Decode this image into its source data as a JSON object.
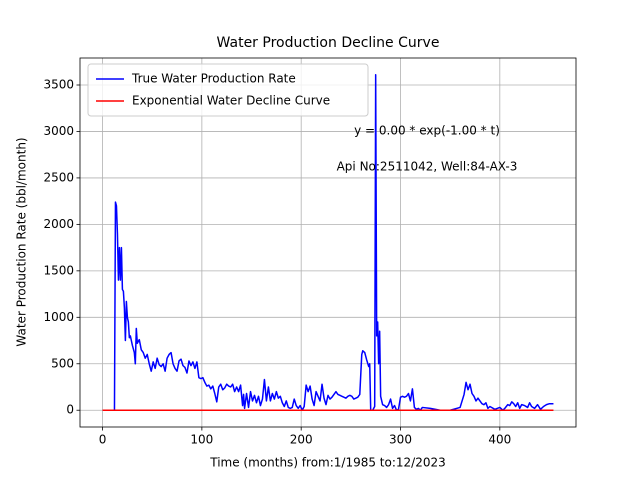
{
  "chart_data": {
    "type": "line",
    "title": "Water Production Decline Curve",
    "x_label": "Time (months) from:1/1985 to:12/2023",
    "y_label": "Water Production Rate (bbl/month)",
    "annotations": [
      "y = 0.00 * exp(-1.00 * t)",
      "Api No:2511042, Well:84-AX-3"
    ],
    "xlim": [
      -22.7,
      476.7
    ],
    "xticks": [
      0,
      100,
      200,
      300,
      400
    ],
    "ylim": [
      -180.5,
      3790.5
    ],
    "yticks": [
      0,
      500,
      1000,
      1500,
      2000,
      2500,
      3000,
      3500
    ],
    "grid": true,
    "legend": "upper left",
    "series": [
      {
        "name": "True Water Production Rate",
        "color": "#0000ff",
        "x": [
          0,
          12,
          13,
          14,
          15,
          16,
          17,
          18,
          19,
          20,
          21,
          22,
          23,
          24,
          25,
          26,
          27,
          28,
          30,
          32,
          33,
          34,
          35,
          37,
          39,
          41,
          43,
          45,
          47,
          49,
          51,
          53,
          55,
          57,
          59,
          61,
          63,
          65,
          67,
          69,
          71,
          73,
          75,
          77,
          79,
          81,
          83,
          85,
          87,
          89,
          91,
          93,
          95,
          97,
          99,
          101,
          103,
          105,
          107,
          109,
          111,
          113,
          115,
          117,
          119,
          121,
          123,
          125,
          127,
          129,
          131,
          133,
          135,
          137,
          139,
          141,
          142,
          143,
          145,
          147,
          149,
          151,
          153,
          155,
          157,
          159,
          161,
          163,
          165,
          167,
          169,
          171,
          173,
          175,
          177,
          179,
          181,
          183,
          185,
          187,
          189,
          191,
          193,
          195,
          197,
          199,
          201,
          203,
          205,
          207,
          209,
          211,
          213,
          215,
          217,
          219,
          221,
          223,
          225,
          227,
          229,
          231,
          233,
          235,
          237,
          239,
          241,
          243,
          245,
          247,
          249,
          251,
          253,
          255,
          257,
          259,
          261,
          262,
          264,
          266,
          268,
          269,
          270,
          272,
          274,
          275,
          276,
          277,
          278,
          279,
          280,
          282,
          284,
          286,
          288,
          290,
          292,
          294,
          296,
          298,
          300,
          302,
          304,
          306,
          308,
          310,
          312,
          314,
          316,
          318,
          320,
          322,
          330,
          340,
          350,
          360,
          362,
          364,
          366,
          368,
          370,
          372,
          374,
          376,
          378,
          380,
          382,
          384,
          386,
          388,
          390,
          395,
          400,
          403,
          405,
          408,
          410,
          412,
          414,
          416,
          418,
          420,
          422,
          425,
          428,
          430,
          432,
          435,
          438,
          441,
          444,
          447,
          450,
          454
        ],
        "values": [
          0,
          0,
          2240,
          2200,
          1900,
          1400,
          1750,
          1400,
          1750,
          1300,
          1280,
          1100,
          750,
          1170,
          1000,
          950,
          780,
          800,
          700,
          620,
          500,
          880,
          720,
          760,
          650,
          620,
          560,
          600,
          500,
          420,
          520,
          450,
          560,
          490,
          470,
          500,
          420,
          560,
          600,
          620,
          500,
          450,
          420,
          530,
          550,
          480,
          460,
          400,
          530,
          480,
          520,
          450,
          520,
          350,
          340,
          350,
          300,
          260,
          270,
          230,
          260,
          180,
          90,
          250,
          280,
          220,
          240,
          280,
          260,
          250,
          280,
          200,
          250,
          200,
          270,
          50,
          170,
          20,
          180,
          30,
          200,
          100,
          160,
          80,
          150,
          50,
          120,
          330,
          100,
          250,
          100,
          180,
          120,
          200,
          130,
          150,
          80,
          40,
          100,
          30,
          20,
          30,
          120,
          50,
          20,
          50,
          0,
          40,
          270,
          200,
          260,
          120,
          50,
          200,
          150,
          100,
          280,
          130,
          60,
          160,
          120,
          140,
          170,
          200,
          170,
          160,
          150,
          140,
          130,
          150,
          160,
          150,
          120,
          130,
          140,
          170,
          600,
          640,
          620,
          540,
          470,
          500,
          0,
          0,
          40,
          3610,
          800,
          950,
          500,
          850,
          150,
          60,
          50,
          30,
          60,
          120,
          20,
          50,
          0,
          10,
          140,
          150,
          140,
          150,
          180,
          100,
          230,
          30,
          10,
          20,
          0,
          30,
          20,
          0,
          0,
          30,
          100,
          170,
          300,
          220,
          280,
          180,
          150,
          100,
          130,
          100,
          70,
          60,
          80,
          20,
          40,
          10,
          30,
          0,
          20,
          60,
          50,
          90,
          70,
          40,
          80,
          20,
          60,
          50,
          30,
          80,
          40,
          20,
          60,
          10,
          40,
          60,
          70,
          70
        ]
      },
      {
        "name": "Exponential Water Decline Curve",
        "color": "#ff0000",
        "x": [
          0,
          454
        ],
        "values": [
          0,
          0
        ]
      }
    ]
  }
}
